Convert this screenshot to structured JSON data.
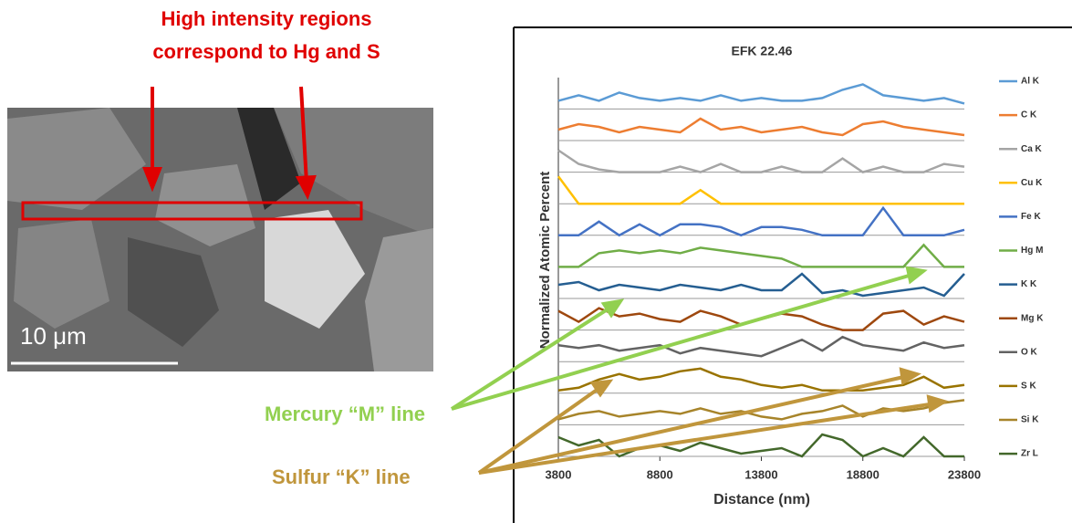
{
  "chart_data": {
    "type": "line",
    "title": "EFK 22.46",
    "xlabel": "Distance (nm)",
    "ylabel": "Normalized Atomic Percent",
    "xlim": [
      3800,
      23800
    ],
    "xticks": [
      3800,
      8800,
      13800,
      18800,
      23800
    ],
    "x": [
      3800,
      4800,
      5800,
      6800,
      7800,
      8800,
      9800,
      10800,
      11800,
      12800,
      13800,
      14800,
      15800,
      16800,
      17800,
      18800,
      19800,
      20800,
      21800,
      22800,
      23800
    ],
    "series": [
      {
        "name": "Al K",
        "color": "#5b9bd5",
        "values": [
          0.3,
          0.5,
          0.3,
          0.6,
          0.4,
          0.3,
          0.4,
          0.3,
          0.5,
          0.3,
          0.4,
          0.3,
          0.3,
          0.4,
          0.7,
          0.9,
          0.5,
          0.4,
          0.3,
          0.4,
          0.2
        ]
      },
      {
        "name": "C K",
        "color": "#ed7d31",
        "values": [
          0.4,
          0.6,
          0.5,
          0.3,
          0.5,
          0.4,
          0.3,
          0.8,
          0.4,
          0.5,
          0.3,
          0.4,
          0.5,
          0.3,
          0.2,
          0.6,
          0.7,
          0.5,
          0.4,
          0.3,
          0.2
        ]
      },
      {
        "name": "Ca K",
        "color": "#a5a5a5",
        "values": [
          0.8,
          0.3,
          0.1,
          0,
          0,
          0,
          0.2,
          0,
          0.3,
          0,
          0,
          0.2,
          0,
          0,
          0.5,
          0,
          0.2,
          0,
          0,
          0.3,
          0.2
        ]
      },
      {
        "name": "Cu K",
        "color": "#ffc000",
        "values": [
          1,
          0,
          0,
          0,
          0,
          0,
          0,
          0.5,
          0,
          0,
          0,
          0,
          0,
          0,
          0,
          0,
          0,
          0,
          0,
          0,
          0
        ]
      },
      {
        "name": "Fe K",
        "color": "#4472c4",
        "values": [
          0,
          0,
          0.5,
          0,
          0.4,
          0,
          0.4,
          0.4,
          0.3,
          0,
          0.3,
          0.3,
          0.2,
          0,
          0,
          0,
          1,
          0,
          0,
          0,
          0.2
        ]
      },
      {
        "name": "Hg M",
        "color": "#70ad47",
        "values": [
          0,
          0,
          0.5,
          0.6,
          0.5,
          0.6,
          0.5,
          0.7,
          0.6,
          0.5,
          0.4,
          0.3,
          0,
          0,
          0,
          0,
          0,
          0,
          0.8,
          0,
          0
        ]
      },
      {
        "name": "K K",
        "color": "#255e91",
        "values": [
          0.5,
          0.6,
          0.3,
          0.5,
          0.4,
          0.3,
          0.5,
          0.4,
          0.3,
          0.5,
          0.3,
          0.3,
          0.9,
          0.2,
          0.3,
          0.1,
          0.2,
          0.3,
          0.4,
          0.1,
          0.9
        ]
      },
      {
        "name": "Mg K",
        "color": "#9e480e",
        "values": [
          0.7,
          0.3,
          0.8,
          0.5,
          0.6,
          0.4,
          0.3,
          0.7,
          0.5,
          0.2,
          0.4,
          0.6,
          0.5,
          0.2,
          0,
          0,
          0.6,
          0.7,
          0.2,
          0.5,
          0.3
        ]
      },
      {
        "name": "O K",
        "color": "#636363",
        "values": [
          0.6,
          0.5,
          0.6,
          0.4,
          0.5,
          0.6,
          0.3,
          0.5,
          0.4,
          0.3,
          0.2,
          0.5,
          0.8,
          0.4,
          0.9,
          0.6,
          0.5,
          0.4,
          0.7,
          0.5,
          0.6
        ]
      },
      {
        "name": "S K",
        "color": "#997300",
        "values": [
          0.1,
          0.2,
          0.5,
          0.7,
          0.5,
          0.6,
          0.8,
          0.9,
          0.6,
          0.5,
          0.3,
          0.2,
          0.3,
          0.1,
          0.1,
          0.1,
          0.2,
          0.3,
          0.6,
          0.2,
          0.3
        ]
      },
      {
        "name": "Si K",
        "color": "#a7842a",
        "values": [
          0.2,
          0.4,
          0.5,
          0.3,
          0.4,
          0.5,
          0.4,
          0.6,
          0.4,
          0.5,
          0.3,
          0.2,
          0.4,
          0.5,
          0.7,
          0.3,
          0.6,
          0.5,
          0.6,
          0.8,
          0.9
        ]
      },
      {
        "name": "Zr L",
        "color": "#43682b",
        "values": [
          0.7,
          0.4,
          0.6,
          0,
          0.3,
          0.4,
          0.2,
          0.5,
          0.3,
          0.1,
          0.2,
          0.3,
          0,
          0.8,
          0.6,
          0,
          0.3,
          0,
          0.7,
          0,
          0
        ]
      }
    ],
    "annotations": [
      "High intensity regions",
      "correspond to Hg and S",
      "Mercury “M” line",
      "Sulfur “K” line"
    ],
    "scale_bar_label": "10 μm"
  }
}
